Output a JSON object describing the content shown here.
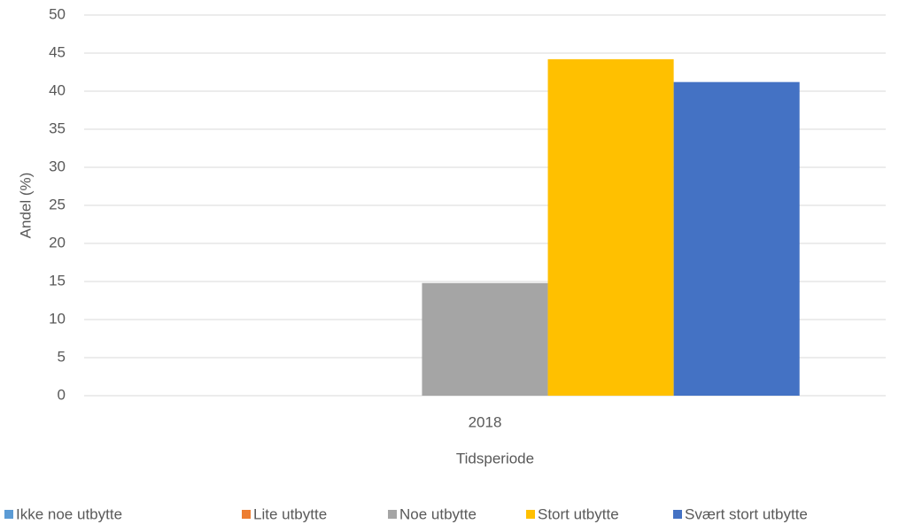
{
  "chart_data": {
    "type": "bar",
    "categories": [
      "2018"
    ],
    "series": [
      {
        "name": "Ikke noe utbytte",
        "color": "#5b9bd5",
        "values": [
          0
        ]
      },
      {
        "name": "Lite utbytte",
        "color": "#ed7d31",
        "values": [
          0
        ]
      },
      {
        "name": "Noe utbytte",
        "color": "#a5a5a5",
        "values": [
          14.8
        ]
      },
      {
        "name": "Stort utbytte",
        "color": "#ffc000",
        "values": [
          44.2
        ]
      },
      {
        "name": "Svært stort utbytte",
        "color": "#4472c4",
        "values": [
          41.2
        ]
      }
    ],
    "xlabel": "Tidsperiode",
    "ylabel": "Andel (%)",
    "ylim": [
      0,
      50
    ],
    "yticks": [
      0,
      5,
      10,
      15,
      20,
      25,
      30,
      35,
      40,
      45,
      50
    ],
    "grid": true,
    "legend": "bottom"
  }
}
